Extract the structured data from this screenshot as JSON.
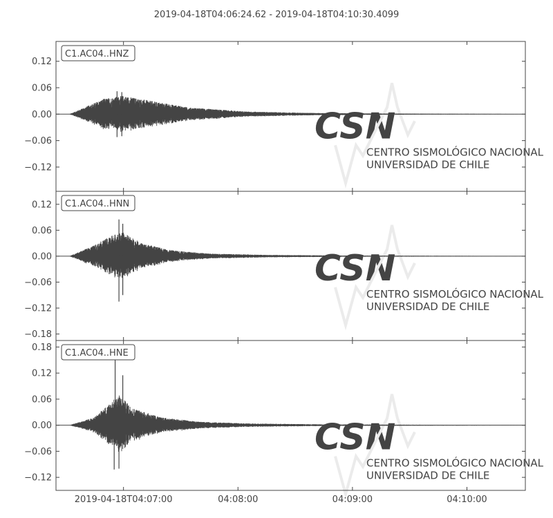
{
  "title": "2019-04-18T04:06:24.62  -  2019-04-18T04:10:30.4099",
  "colors": {
    "trace": "#444444",
    "axes": "#444444",
    "background": "#ffffff",
    "watermark": "#ebebeb"
  },
  "watermark": {
    "logo": "CSN",
    "line1": "CENTRO SISMOLÓGICO NACIONAL",
    "line2": "UNIVERSIDAD DE CHILE"
  },
  "chart_data": [
    {
      "type": "line",
      "label": "C1.AC04..HNZ",
      "ylim": [
        -0.175,
        0.165
      ],
      "yticks": [
        0.12,
        0.06,
        0.0,
        -0.06,
        -0.12
      ],
      "ytick_labels": [
        "0.12",
        "0.06",
        "0.00",
        "−0.06",
        "−0.12"
      ],
      "xticks": [],
      "xtick_labels": [],
      "x": [
        0,
        7,
        25,
        35,
        50,
        70,
        100,
        130,
        160,
        200,
        246
      ],
      "envelope": [
        0.0,
        0.0,
        0.035,
        0.042,
        0.03,
        0.015,
        0.006,
        0.003,
        0.0018,
        0.001,
        0.0005
      ],
      "peaks_pos": [
        [
          32,
          0.052
        ],
        [
          34.5,
          0.05
        ],
        [
          43,
          0.02
        ]
      ],
      "peaks_neg": [
        [
          32,
          -0.052
        ],
        [
          34.5,
          -0.05
        ],
        [
          43,
          -0.02
        ]
      ],
      "grid": false
    },
    {
      "type": "line",
      "label": "C1.AC04..HNN",
      "ylim": [
        -0.195,
        0.15
      ],
      "yticks": [
        0.12,
        0.06,
        0.0,
        -0.06,
        -0.12,
        -0.18
      ],
      "ytick_labels": [
        "0.12",
        "0.06",
        "0.00",
        "−0.06",
        "−0.12",
        "−0.18"
      ],
      "xticks": [],
      "xtick_labels": [],
      "x": [
        0,
        7,
        20,
        30,
        35,
        45,
        60,
        80,
        110,
        150,
        200,
        246
      ],
      "envelope": [
        0.0,
        0.0,
        0.025,
        0.05,
        0.055,
        0.03,
        0.014,
        0.006,
        0.003,
        0.0015,
        0.001,
        0.0005
      ],
      "peaks_pos": [
        [
          33,
          0.085
        ],
        [
          35,
          0.075
        ]
      ],
      "peaks_neg": [
        [
          33,
          -0.105
        ],
        [
          35,
          -0.09
        ]
      ],
      "grid": false
    },
    {
      "type": "line",
      "label": "C1.AC04..HNE",
      "ylim": [
        -0.15,
        0.195
      ],
      "yticks": [
        0.18,
        0.12,
        0.06,
        0.0,
        -0.06,
        -0.12
      ],
      "ytick_labels": [
        "0.18",
        "0.12",
        "0.06",
        "0.00",
        "−0.06",
        "−0.12"
      ],
      "xticks": [
        "2019-04-18T04:07:00",
        "04:08:00",
        "04:09:00",
        "04:10:00"
      ],
      "xtick_labels": [
        "2019-04-18T04:07:00",
        "04:08:00",
        "04:09:00",
        "04:10:00"
      ],
      "xtick_seconds": [
        35.38,
        95.38,
        155.38,
        215.38
      ],
      "x": [
        0,
        7,
        20,
        28,
        33,
        40,
        55,
        75,
        100,
        140,
        200,
        246
      ],
      "envelope": [
        0.0,
        0.0,
        0.018,
        0.05,
        0.07,
        0.04,
        0.018,
        0.008,
        0.004,
        0.002,
        0.001,
        0.0005
      ],
      "peaks_pos": [
        [
          31,
          0.155
        ],
        [
          35,
          0.115
        ]
      ],
      "peaks_neg": [
        [
          30.5,
          -0.102
        ],
        [
          33,
          -0.1
        ]
      ],
      "grid": false
    }
  ]
}
